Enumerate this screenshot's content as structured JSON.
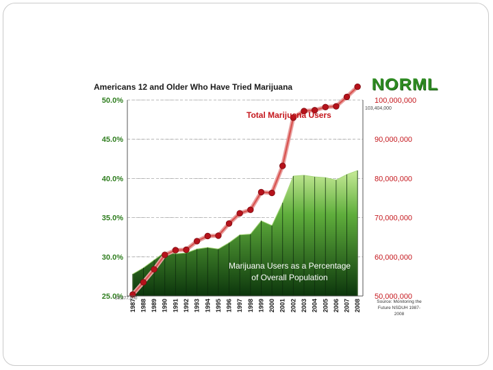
{
  "chart_data": {
    "type": "area+line",
    "title": "Americans 12 and Older Who Have Tried Marijuana",
    "categories": [
      "1987",
      "1988",
      "1989",
      "1990",
      "1991",
      "1992",
      "1993",
      "1994",
      "1995",
      "1996",
      "1997",
      "1998",
      "1999",
      "2000",
      "2001",
      "2002",
      "2003",
      "2004",
      "2005",
      "2006",
      "2007",
      "2008"
    ],
    "series": [
      {
        "name": "Marijuana Users as a Percentage of Overall Population",
        "axis": "left",
        "style": "area",
        "values": [
          27.8,
          28.6,
          29.6,
          30.6,
          30.4,
          30.5,
          31.0,
          31.2,
          31.0,
          31.8,
          32.8,
          32.9,
          34.6,
          34.0,
          36.9,
          40.3,
          40.4,
          40.2,
          40.1,
          39.8,
          40.5,
          41.0
        ]
      },
      {
        "name": "Total Marijuana Users",
        "axis": "right",
        "style": "line",
        "values": [
          50377000,
          53500000,
          56800000,
          60500000,
          61700000,
          61800000,
          64000000,
          65300000,
          65400000,
          68500000,
          71100000,
          72000000,
          76500000,
          76300000,
          83200000,
          95500000,
          97200000,
          97400000,
          98200000,
          98400000,
          100800000,
          103404000
        ]
      }
    ],
    "y_left": {
      "min": 25,
      "max": 50,
      "ticks": [
        "25.0%",
        "30.0%",
        "35.0%",
        "40.0%",
        "45.0%",
        "50.0%"
      ]
    },
    "y_right": {
      "min": 50000000,
      "max": 100000000,
      "ticks": [
        "50,000,000",
        "60,000,000",
        "70,000,000",
        "80,000,000",
        "90,000,000",
        "100,000,000"
      ]
    },
    "series_labels": {
      "total_users": "Total Marijuana Users",
      "percentage_line1": "Marijuana Users as a Percentage",
      "percentage_line2": "of Overall Population"
    },
    "point_labels": {
      "first": "50,377,000",
      "last": "103,404,000"
    },
    "colors": {
      "line": "#c4161c",
      "line_shadow": "#e8a0a0",
      "area_top": "#b9e08a",
      "area_bottom": "#0e3b0e",
      "left_axis": "#2e7d1e",
      "right_axis": "#c4161c"
    }
  },
  "logo": "NORML",
  "source_note": "Source: Monitoring the Future NSDUH 1987-2008"
}
